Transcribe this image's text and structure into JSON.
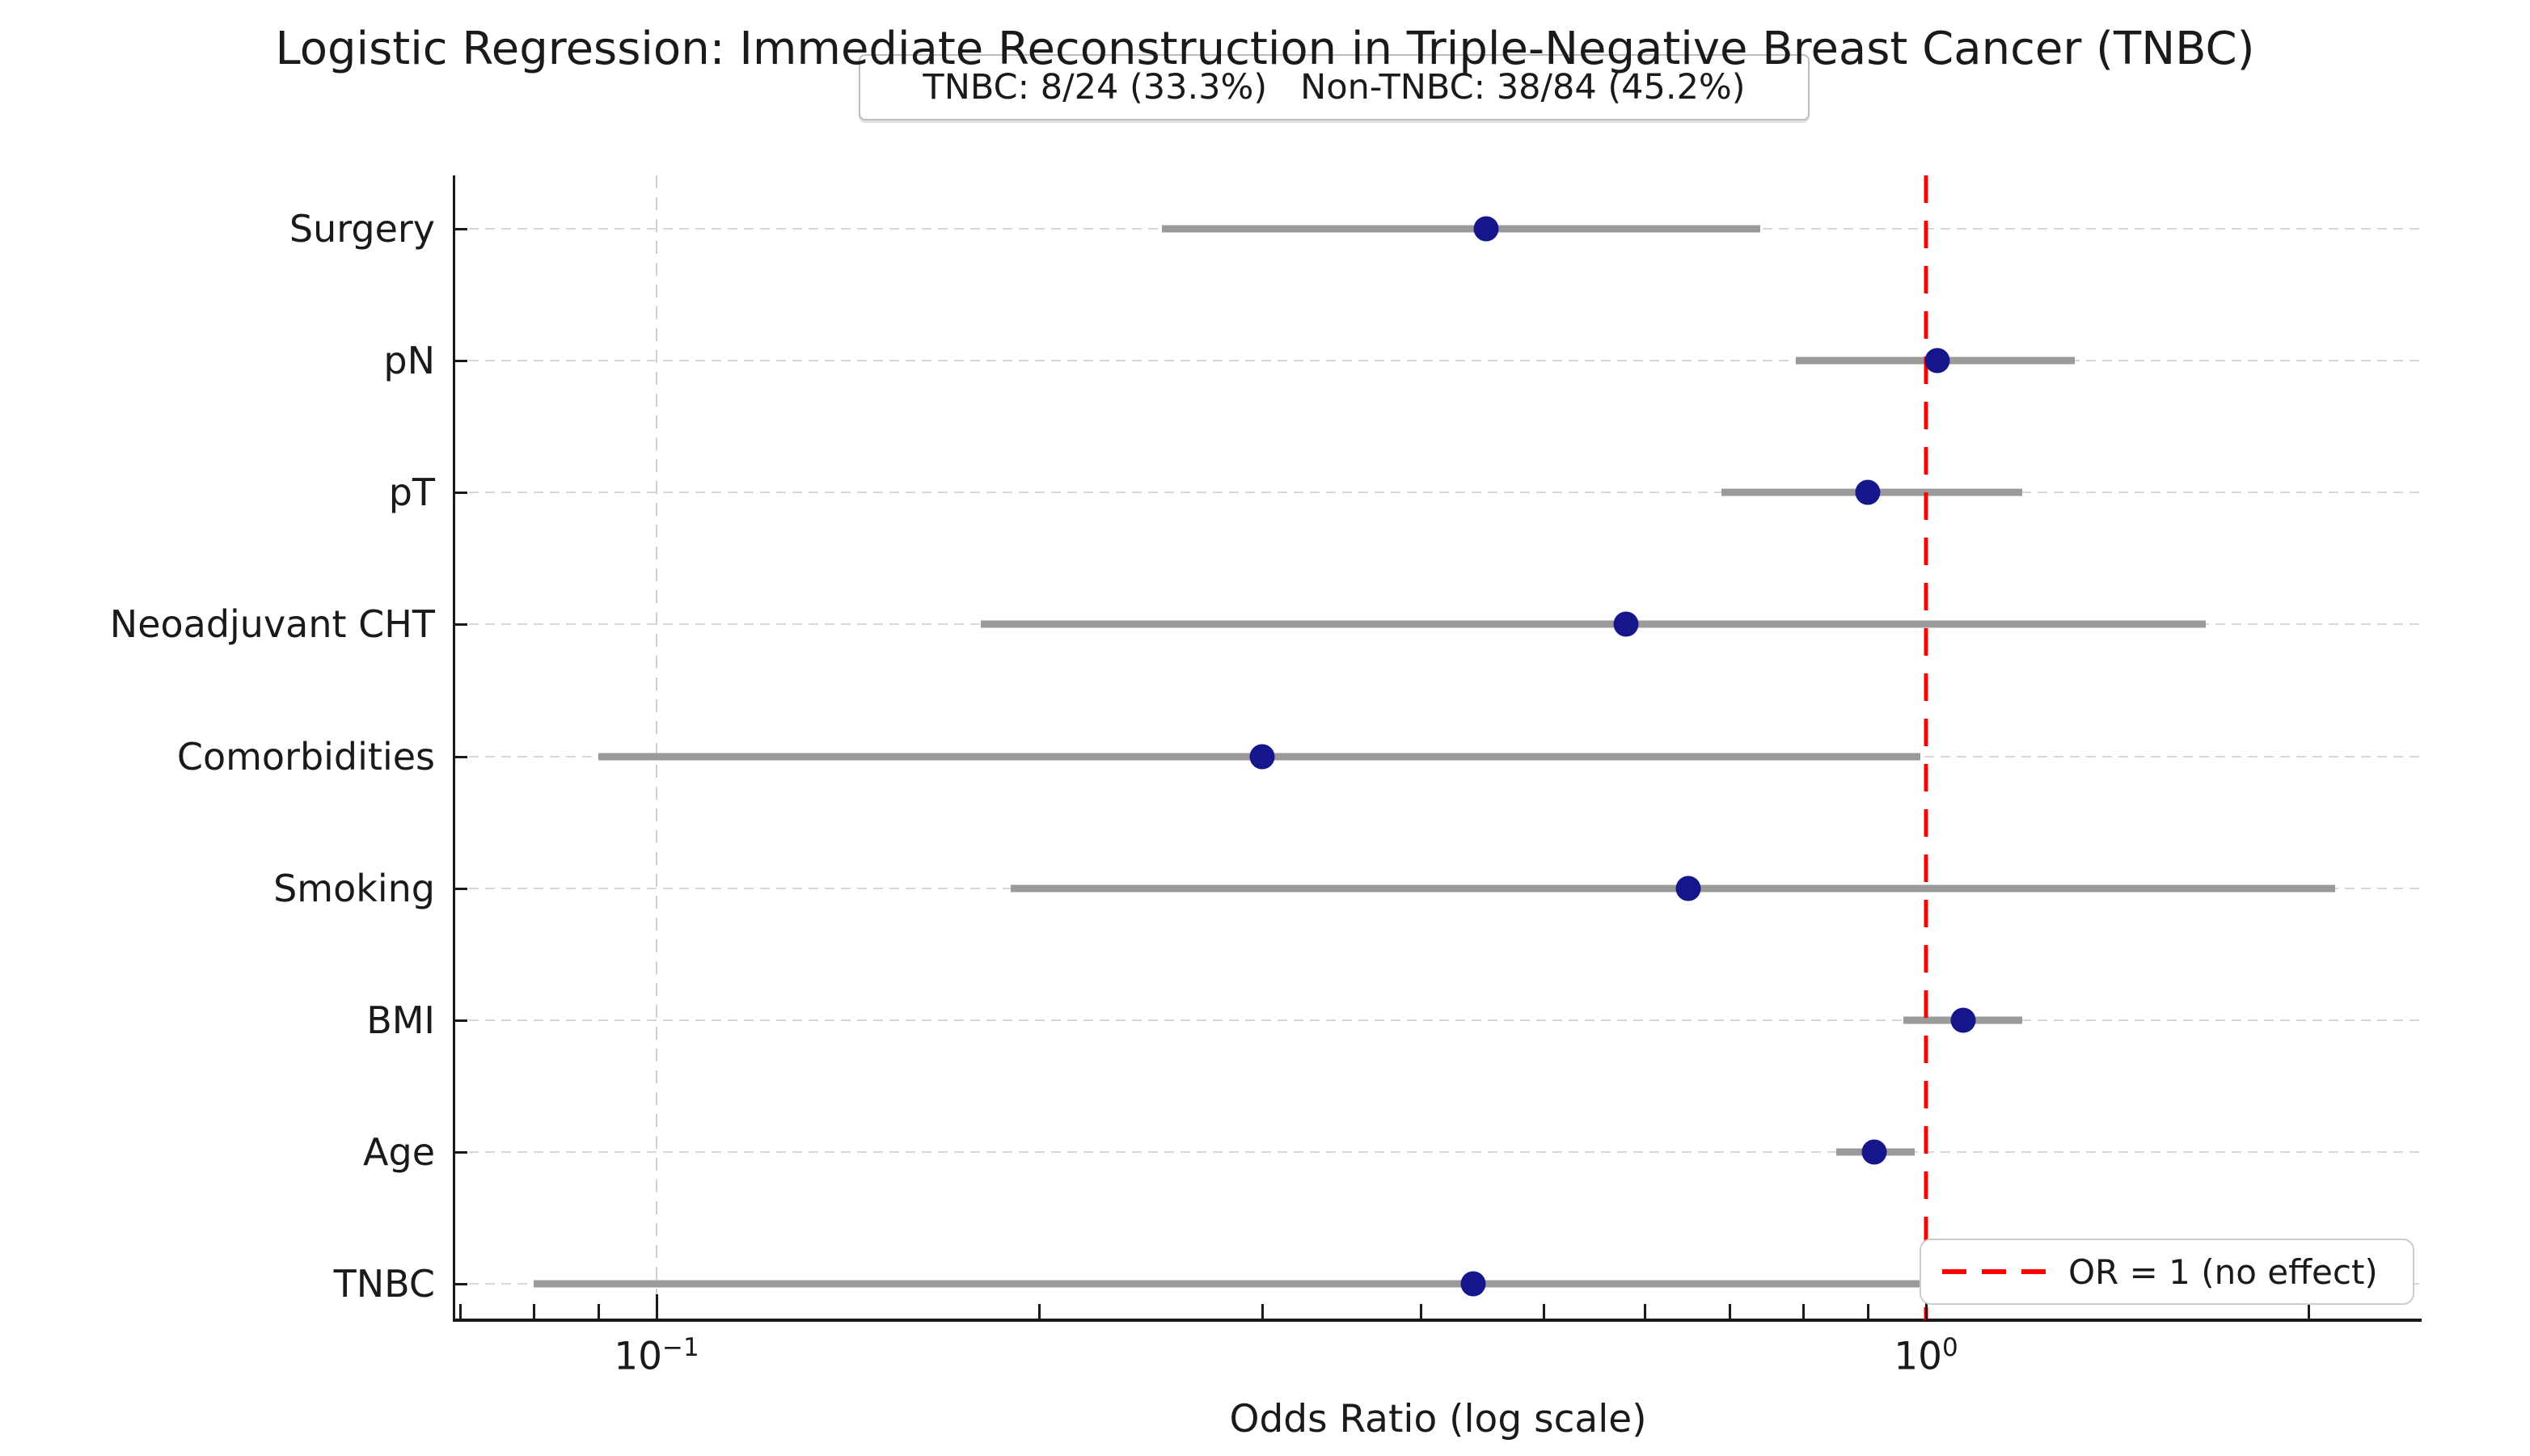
{
  "figure": {
    "title": "Logistic Regression: Immediate Reconstruction in Triple-Negative Breast Cancer (TNBC)",
    "subtitle": "TNBC: 8/24 (33.3%)   Non-TNBC: 38/84 (45.2%)",
    "xlabel": "Odds Ratio (log scale)",
    "legend": {
      "label": "OR = 1 (no effect)"
    }
  },
  "chart_data": {
    "type": "scatter",
    "variant": "forest-plot",
    "title": "Logistic Regression: Immediate Reconstruction in Triple-Negative Breast Cancer (TNBC)",
    "subtitle": "TNBC: 8/24 (33.3%)   Non-TNBC: 38/84 (45.2%)",
    "xlabel": "Odds Ratio (log scale)",
    "x_scale": "log10",
    "x_range": [
      0.069,
      2.46
    ],
    "x_axis": {
      "major_ticks": [
        {
          "value": 0.1,
          "base": "10",
          "exp": "−1"
        },
        {
          "value": 1.0,
          "base": "10",
          "exp": "0"
        }
      ],
      "minor_ticks": [
        0.07,
        0.08,
        0.09,
        0.2,
        0.3,
        0.4,
        0.5,
        0.6,
        0.7,
        0.8,
        0.9,
        2.0
      ]
    },
    "reference_line": {
      "value": 1.0,
      "label": "OR = 1 (no effect)",
      "color": "#ff0000",
      "style": "dashed"
    },
    "rows": [
      {
        "label": "Surgery",
        "or": 0.45,
        "ci_low": 0.25,
        "ci_high": 0.74
      },
      {
        "label": "pN",
        "or": 1.02,
        "ci_low": 0.79,
        "ci_high": 1.31
      },
      {
        "label": "pT",
        "or": 0.9,
        "ci_low": 0.69,
        "ci_high": 1.19
      },
      {
        "label": "Neoadjuvant CHT",
        "or": 0.58,
        "ci_low": 0.18,
        "ci_high": 1.66
      },
      {
        "label": "Comorbidities",
        "or": 0.3,
        "ci_low": 0.09,
        "ci_high": 0.99
      },
      {
        "label": "Smoking",
        "or": 0.65,
        "ci_low": 0.19,
        "ci_high": 2.1
      },
      {
        "label": "BMI",
        "or": 1.07,
        "ci_low": 0.96,
        "ci_high": 1.19
      },
      {
        "label": "Age",
        "or": 0.91,
        "ci_low": 0.85,
        "ci_high": 0.98
      },
      {
        "label": "TNBC",
        "or": 0.44,
        "ci_low": 0.08,
        "ci_high": 1.04
      }
    ],
    "gridlines": {
      "horizontal": "dashed-per-row",
      "vertical_at": [
        0.1
      ]
    },
    "legend_position": "lower-right",
    "colors": {
      "marker": "#16168C",
      "ci": "#9a9a9a",
      "reference": "#ff0000",
      "grid": "#d8d8d8",
      "axis": "#1a1a1a"
    }
  }
}
